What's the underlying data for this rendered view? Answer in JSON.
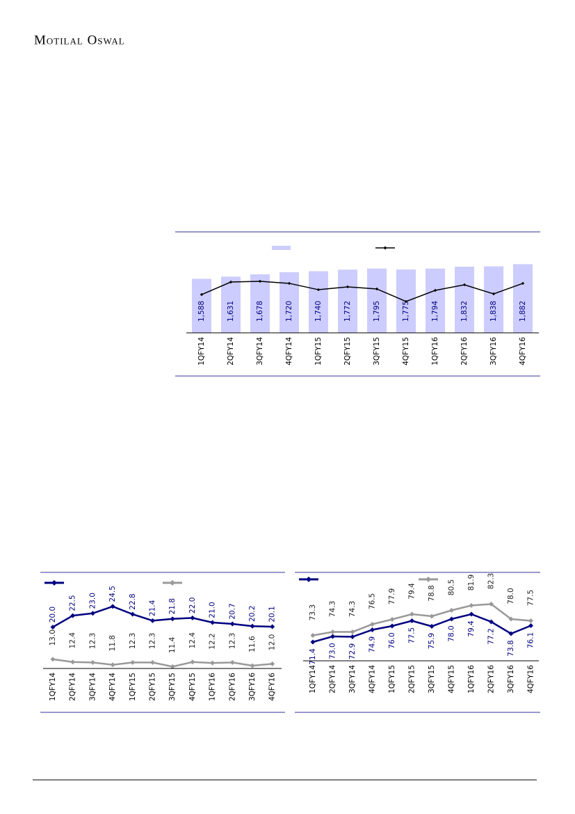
{
  "header": {
    "brand": "Motilal Oswal"
  },
  "chart_data": [
    {
      "type": "bar",
      "categories": [
        "1QFY14",
        "2QFY14",
        "3QFY14",
        "4QFY14",
        "1QFY15",
        "2QFY15",
        "3QFY15",
        "4QFY15",
        "1QFY16",
        "2QFY16",
        "3QFY16",
        "4QFY16"
      ],
      "series": [
        {
          "color": "#ccccff",
          "values": [
            1588,
            1631,
            1678,
            1720,
            1740,
            1772,
            1795,
            1775,
            1794,
            1832,
            1838,
            1882
          ],
          "value_labels": [
            "1,588",
            "1,631",
            "1,678",
            "1,720",
            "1,740",
            "1,772",
            "1,795",
            "1,775",
            "1,794",
            "1,832",
            "1,838",
            "1,882"
          ]
        },
        {
          "type": "line",
          "axis": "y2",
          "color": "#000000",
          "values": [
            151.4,
            168.2,
            169.2,
            166.4,
            157.9,
            161.7,
            158.9,
            142.1,
            157.0,
            164.5,
            152.3,
            166.4
          ]
        }
      ],
      "ylim": [
        500,
        2000
      ],
      "y2lim": [
        100,
        200
      ]
    },
    {
      "type": "line",
      "categories": [
        "1QFY14",
        "2QFY14",
        "3QFY14",
        "4QFY14",
        "1QFY15",
        "2QFY15",
        "3QFY15",
        "4QFY15",
        "1QFY16",
        "2QFY16",
        "3QFY16",
        "4QFY16"
      ],
      "series": [
        {
          "color": "#000080",
          "values": [
            20.0,
            22.5,
            23.0,
            24.5,
            22.8,
            21.4,
            21.8,
            22.0,
            21.0,
            20.7,
            20.2,
            20.1
          ],
          "value_labels": [
            "20.0",
            "22.5",
            "23.0",
            "24.5",
            "22.8",
            "21.4",
            "21.8",
            "22.0",
            "21.0",
            "20.7",
            "20.2",
            "20.1"
          ]
        },
        {
          "color": "#999999",
          "values": [
            13.0,
            12.4,
            12.3,
            11.8,
            12.3,
            12.3,
            11.4,
            12.4,
            12.2,
            12.3,
            11.6,
            12.0
          ],
          "value_labels": [
            "13.0",
            "12.4",
            "12.3",
            "11.8",
            "12.3",
            "12.3",
            "11.4",
            "12.4",
            "12.2",
            "12.3",
            "11.6",
            "12.0"
          ]
        }
      ],
      "ylim": [
        11,
        26
      ]
    },
    {
      "type": "line",
      "categories": [
        "1QFY14",
        "2QFY14",
        "3QFY14",
        "4QFY14",
        "1QFY15",
        "2QFY15",
        "3QFY15",
        "4QFY15",
        "1QFY16",
        "2QFY16",
        "3QFY16",
        "4QFY16"
      ],
      "series": [
        {
          "color": "#000080",
          "values": [
            71.4,
            73.0,
            72.9,
            74.9,
            76.0,
            77.5,
            75.9,
            78.0,
            79.4,
            77.2,
            73.8,
            76.1
          ],
          "value_labels": [
            "71.4",
            "73.0",
            "72.9",
            "74.9",
            "76.0",
            "77.5",
            "75.9",
            "78.0",
            "79.4",
            "77.2",
            "73.8",
            "76.1"
          ]
        },
        {
          "color": "#999999",
          "values": [
            73.3,
            74.3,
            74.3,
            76.5,
            77.9,
            79.4,
            78.8,
            80.5,
            81.9,
            82.3,
            78.0,
            77.5
          ],
          "value_labels": [
            "73.3",
            "74.3",
            "74.3",
            "76.5",
            "77.9",
            "79.4",
            "78.8",
            "80.5",
            "81.9",
            "82.3",
            "78.0",
            "77.5"
          ]
        }
      ],
      "ylim": [
        66,
        86
      ]
    }
  ]
}
